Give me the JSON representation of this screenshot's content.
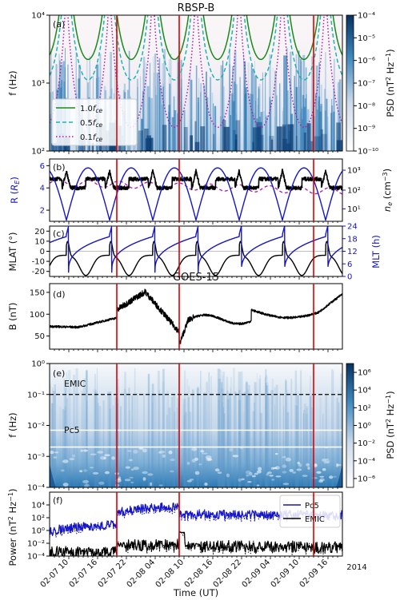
{
  "chart_data": [
    {
      "id": "a",
      "type": "heatmap",
      "title": "RBSP-B",
      "panel_label": "(a)",
      "ylabel": "f (Hz)",
      "yscale": "log",
      "ylim": [
        100,
        10000
      ],
      "yticks": [
        "10²",
        "10³",
        "10⁴"
      ],
      "colorbar": {
        "label": "PSD (nT² Hz⁻¹)",
        "ticks": [
          "10⁻¹⁰",
          "10⁻⁹",
          "10⁻⁸",
          "10⁻⁷",
          "10⁻⁶",
          "10⁻⁵",
          "10⁻⁴"
        ],
        "lim": [
          -10,
          -4
        ]
      },
      "legend": [
        "1.0f_ce",
        "0.5f_ce",
        "0.1f_ce"
      ],
      "legend_placement": "lower-left",
      "series_colors": {
        "fce": "#1a8a1a",
        "half": "#1fb3b3",
        "tenth": "#b01ab0"
      }
    },
    {
      "id": "b",
      "type": "line",
      "panel_label": "(b)",
      "ylabel": "R (R_E)",
      "y2label": "n_e (cm⁻³)",
      "ylim": [
        1,
        6.6
      ],
      "yticks": [
        "2",
        "4",
        "6"
      ],
      "y2scale": "log",
      "y2ticks": [
        "10¹",
        "10²",
        "10³"
      ]
    },
    {
      "id": "c",
      "type": "line",
      "panel_label": "(c)",
      "ylabel": "MLAT (°)",
      "y2label": "MLT (h)",
      "ylim": [
        -25,
        25
      ],
      "yticks": [
        "-20",
        "-10",
        "0",
        "10",
        "20"
      ],
      "y2lim": [
        0,
        24
      ],
      "y2ticks": [
        "0",
        "6",
        "12",
        "18",
        "24"
      ]
    },
    {
      "id": "d",
      "type": "line",
      "title": "GOES-15",
      "panel_label": "(d)",
      "ylabel": "B (nT)",
      "ylim": [
        20,
        170
      ],
      "yticks": [
        "50",
        "100",
        "150"
      ]
    },
    {
      "id": "e",
      "type": "heatmap",
      "panel_label": "(e)",
      "ylabel": "f (Hz)",
      "yscale": "log",
      "ylim": [
        0.0001,
        1
      ],
      "yticks": [
        "10⁻⁴",
        "10⁻³",
        "10⁻²",
        "10⁻¹",
        "10⁰"
      ],
      "colorbar": {
        "label": "PSD (nT² Hz⁻¹)",
        "ticks": [
          "10⁻⁶",
          "10⁻⁴",
          "10⁻²",
          "10⁰",
          "10²",
          "10⁴",
          "10⁶"
        ],
        "lim": [
          -7,
          7
        ]
      },
      "annotations": [
        "EMIC",
        "Pc5"
      ]
    },
    {
      "id": "f",
      "type": "line",
      "panel_label": "(f)",
      "ylabel": "Power (nT² Hz⁻¹)",
      "yscale": "log",
      "ylim": [
        0.0001,
        1000000
      ],
      "yticks": [
        "10⁻⁴",
        "10⁻²",
        "10⁰",
        "10²",
        "10⁴"
      ],
      "legend": [
        "Pc5",
        "EMIC"
      ],
      "legend_placement": "upper-right"
    }
  ],
  "time_axis": {
    "xlabel": "Time (UT)",
    "ticks": [
      "02-07 10",
      "02-07 16",
      "02-07 22",
      "02-08 04",
      "02-08 10",
      "02-08 16",
      "02-08 22",
      "02-09 04",
      "02-09 10",
      "02-09 16"
    ],
    "year": "2014",
    "xlim_hours": [
      6,
      67
    ],
    "red_lines_hours": [
      20,
      33,
      61
    ]
  }
}
